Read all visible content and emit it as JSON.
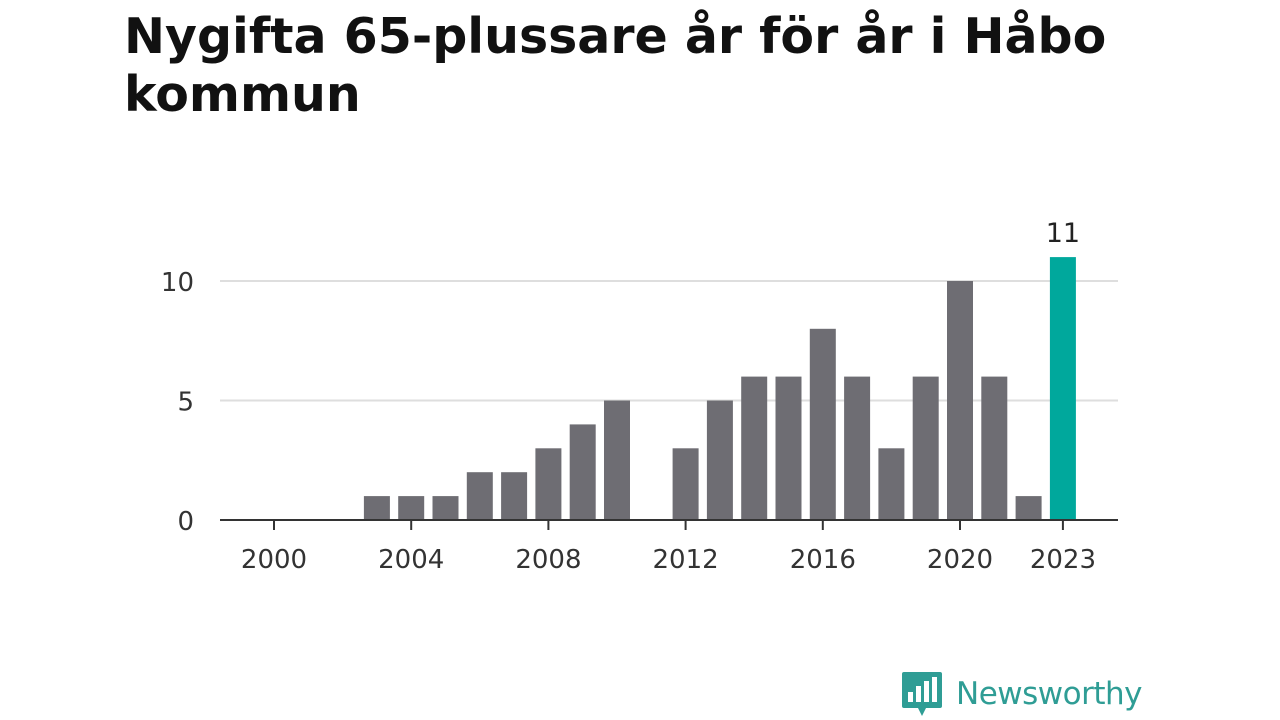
{
  "title": "Nygifta 65-plussare år för år i Håbo kommun",
  "brand": {
    "name": "Newsworthy",
    "icon": "newsworthy-logo-icon"
  },
  "colors": {
    "bar": "#6e6d73",
    "highlight": "#00a89c",
    "grid": "#dedede",
    "axis": "#333333",
    "brand": "#2f9d95"
  },
  "chart_data": {
    "type": "bar",
    "title": "Nygifta 65-plussare år för år i Håbo kommun",
    "xlabel": "",
    "ylabel": "",
    "categories": [
      2000,
      2001,
      2002,
      2003,
      2004,
      2005,
      2006,
      2007,
      2008,
      2009,
      2010,
      2011,
      2012,
      2013,
      2014,
      2015,
      2016,
      2017,
      2018,
      2019,
      2020,
      2021,
      2022,
      2023
    ],
    "values": [
      0,
      0,
      0,
      1,
      1,
      1,
      2,
      2,
      3,
      4,
      5,
      0,
      3,
      5,
      6,
      6,
      8,
      6,
      3,
      6,
      10,
      6,
      1,
      11
    ],
    "highlight_index": 23,
    "highlight_label": "11",
    "ylim": [
      0,
      11
    ],
    "yticks": [
      0,
      5,
      10
    ],
    "xticks": [
      2000,
      2004,
      2008,
      2012,
      2016,
      2020,
      2023
    ],
    "grid": true,
    "legend": "none"
  }
}
